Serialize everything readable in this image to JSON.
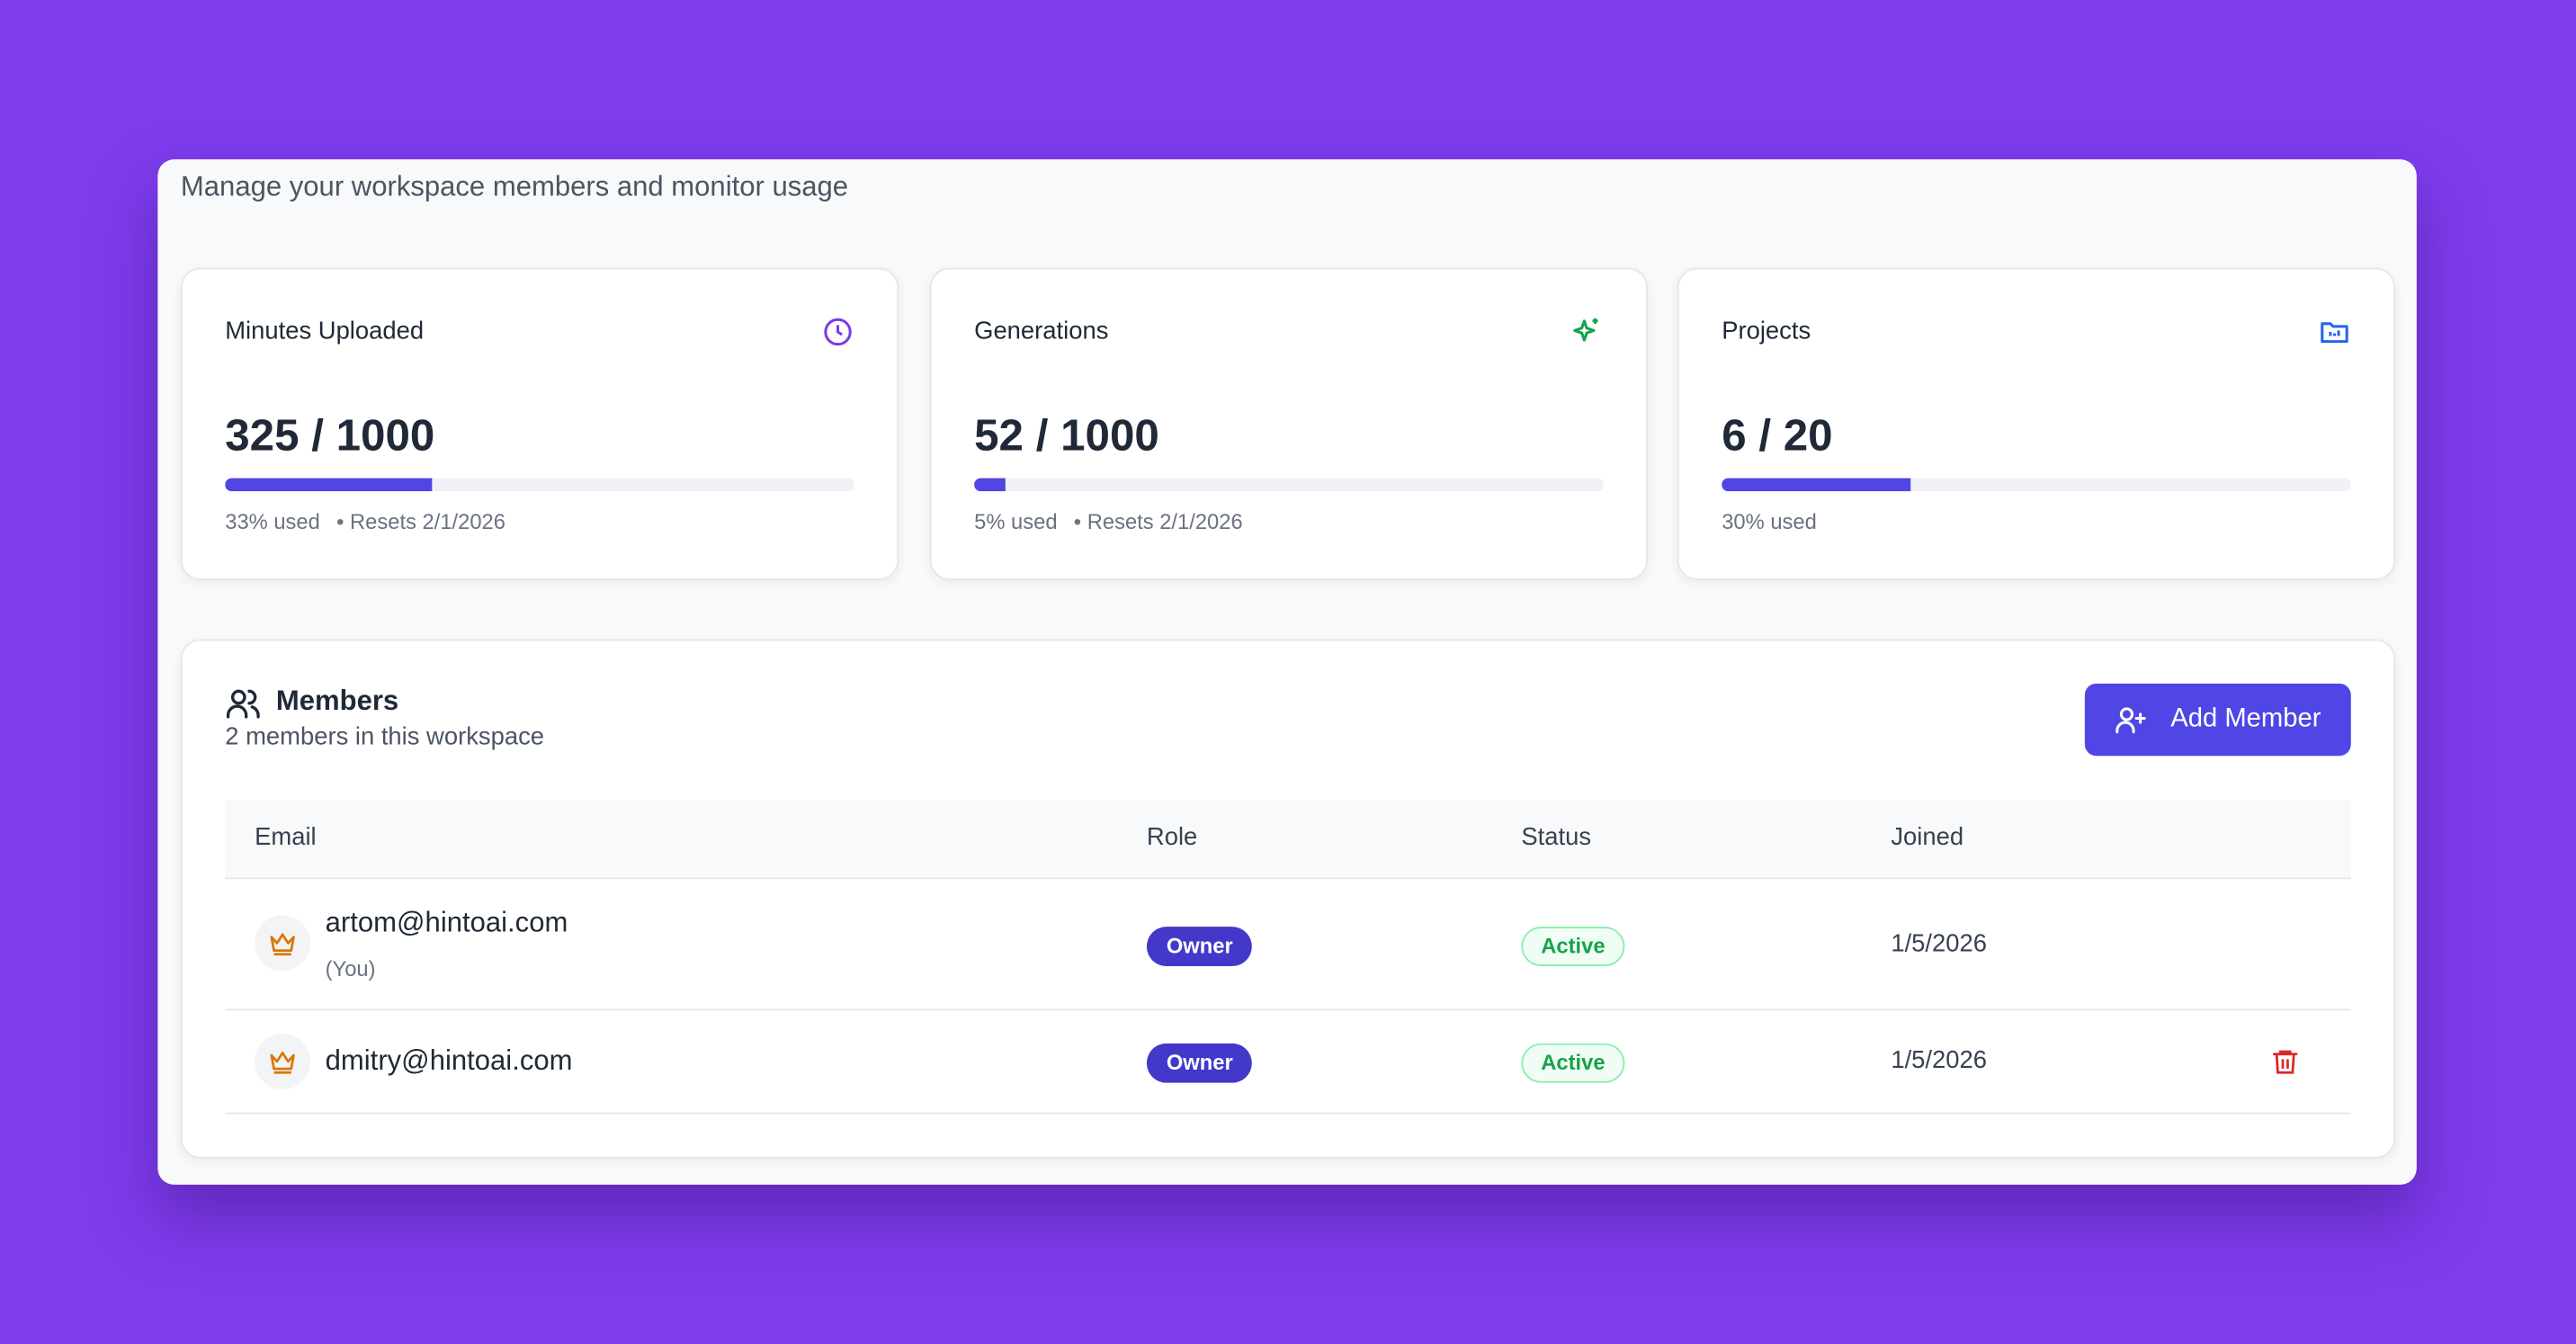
{
  "header": {
    "subtitle": "Manage your workspace members and monitor usage"
  },
  "usage": [
    {
      "title": "Minutes Uploaded",
      "amount": "325 / 1000",
      "percent": 33,
      "percent_label": "33% used",
      "reset": "• Resets 2/1/2026"
    },
    {
      "title": "Generations",
      "amount": "52 / 1000",
      "percent": 5,
      "percent_label": "5% used",
      "reset": "• Resets 2/1/2026"
    },
    {
      "title": "Projects",
      "amount": "6 / 20",
      "percent": 30,
      "percent_label": "30% used"
    }
  ],
  "members": {
    "title": "Members",
    "subtitle": "2 members in this workspace",
    "button": "Add Member",
    "table": {
      "headers": [
        "Email",
        "Role",
        "Status",
        "Joined"
      ],
      "rows": [
        {
          "email": "artom@hintoai.com",
          "note": "(You)",
          "role": "Owner",
          "status": "Active",
          "joined": "1/5/2026"
        },
        {
          "email": "dmitry@hintoai.com",
          "role": "Owner",
          "status": "Active",
          "joined": "1/5/2026"
        }
      ]
    }
  }
}
